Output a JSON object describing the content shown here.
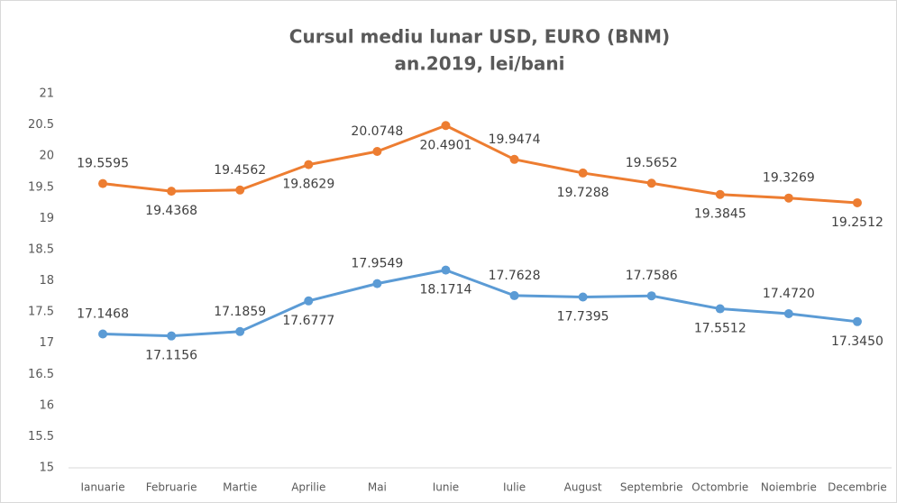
{
  "chart_data": {
    "type": "line",
    "title": "Cursul mediu lunar USD, EURO (BNM)",
    "subtitle": "an.2019, lei/bani",
    "categories": [
      "Ianuarie",
      "Februarie",
      "Martie",
      "Aprilie",
      "Mai",
      "Iunie",
      "Iulie",
      "August",
      "Septembrie",
      "Octombrie",
      "Noiembrie",
      "Decembrie"
    ],
    "series": [
      {
        "color": "#ed7d31",
        "values": [
          19.5595,
          19.4368,
          19.4562,
          19.8629,
          20.0748,
          20.4901,
          19.9474,
          19.7288,
          19.5652,
          19.3845,
          19.3269,
          19.2512
        ]
      },
      {
        "color": "#5b9bd5",
        "values": [
          17.1468,
          17.1156,
          17.1859,
          17.6777,
          17.9549,
          18.1714,
          17.7628,
          17.7395,
          17.7586,
          17.5512,
          17.472,
          17.345
        ],
        "value_labels": [
          "17.1468",
          "17.1156",
          "17.1859",
          "17.6777",
          "17.9549",
          "18.1714",
          "17.7628",
          "17.7395",
          "17.7586",
          "17.5512",
          "17.4720",
          "17.3450"
        ]
      }
    ],
    "ylim": [
      15,
      21
    ],
    "yticks": [
      15,
      15.5,
      16,
      16.5,
      17,
      17.5,
      18,
      18.5,
      19,
      19.5,
      20,
      20.5,
      21
    ],
    "grid": false
  }
}
